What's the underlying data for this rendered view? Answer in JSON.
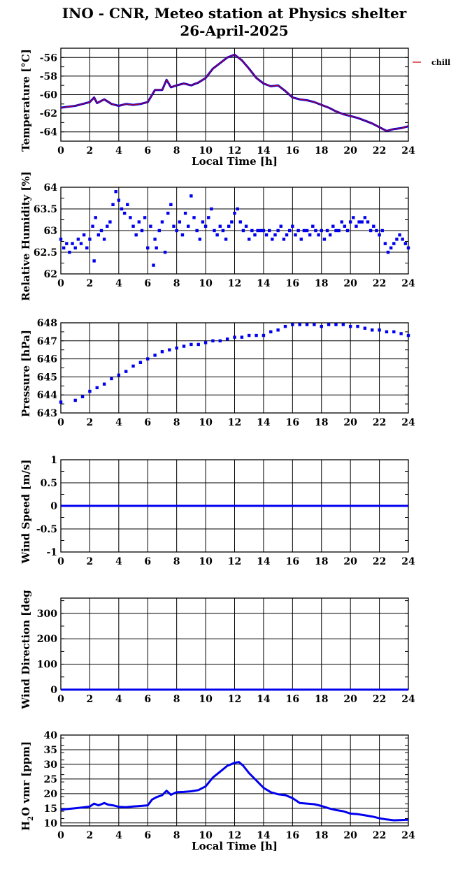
{
  "figure": {
    "title_line1": "INO - CNR, Meteo station at Physics shelter",
    "title_line2": "26-April-2025"
  },
  "chart_data": [
    {
      "type": "line",
      "id": "temperature",
      "ylabel": "Temperature [°C]",
      "xlabel": "Local Time [h]",
      "xlim": [
        0,
        24
      ],
      "ylim": [
        -65,
        -55
      ],
      "x_ticks": [
        0,
        2,
        4,
        6,
        8,
        10,
        12,
        14,
        16,
        18,
        20,
        22,
        24
      ],
      "y_ticks": [
        -64,
        -62,
        -60,
        -58,
        -56
      ],
      "grid": true,
      "legend": {
        "placement": "outside-top-right",
        "entries": [
          {
            "label": "chill",
            "color": "#cc0000"
          }
        ]
      },
      "series": [
        {
          "name": "chill",
          "color": "#0000ee",
          "overlay_color": "#cc0000",
          "x": [
            0,
            0.5,
            1,
            1.5,
            2,
            2.3,
            2.5,
            3,
            3.5,
            4,
            4.5,
            5,
            5.5,
            6,
            6.5,
            7,
            7.3,
            7.6,
            8,
            8.5,
            9,
            9.5,
            10,
            10.5,
            11,
            11.5,
            12,
            12.5,
            13,
            13.5,
            14,
            14.5,
            15,
            15.5,
            16,
            16.5,
            17,
            17.5,
            18,
            18.5,
            19,
            19.5,
            20,
            20.5,
            21,
            21.5,
            22,
            22.5,
            23,
            23.5,
            24
          ],
          "y": [
            -61.4,
            -61.3,
            -61.2,
            -61.0,
            -60.8,
            -60.3,
            -60.9,
            -60.5,
            -61.0,
            -61.2,
            -61.0,
            -61.1,
            -61.0,
            -60.8,
            -59.5,
            -59.5,
            -58.4,
            -59.2,
            -59.0,
            -58.8,
            -59.0,
            -58.7,
            -58.2,
            -57.2,
            -56.6,
            -56.0,
            -55.7,
            -56.3,
            -57.2,
            -58.2,
            -58.8,
            -59.1,
            -59.0,
            -59.6,
            -60.3,
            -60.5,
            -60.6,
            -60.8,
            -61.1,
            -61.4,
            -61.8,
            -62.1,
            -62.3,
            -62.5,
            -62.8,
            -63.1,
            -63.5,
            -63.9,
            -63.7,
            -63.6,
            -63.4
          ]
        }
      ]
    },
    {
      "type": "scatter",
      "id": "humidity",
      "ylabel": "Relative Humidity [%]",
      "xlim": [
        0,
        24
      ],
      "ylim": [
        62,
        64
      ],
      "x_ticks": [
        0,
        2,
        4,
        6,
        8,
        10,
        12,
        14,
        16,
        18,
        20,
        22,
        24
      ],
      "y_ticks": [
        62,
        62.5,
        63,
        63.5,
        64
      ],
      "grid": true,
      "series": [
        {
          "color": "#0000ee",
          "x": [
            0,
            0.2,
            0.4,
            0.6,
            0.8,
            1,
            1.2,
            1.4,
            1.6,
            1.8,
            2,
            2.2,
            2.3,
            2.4,
            2.6,
            2.8,
            3,
            3.2,
            3.4,
            3.6,
            3.8,
            4,
            4.2,
            4.4,
            4.6,
            4.8,
            5,
            5.2,
            5.4,
            5.6,
            5.8,
            6,
            6.2,
            6.4,
            6.5,
            6.6,
            6.8,
            7,
            7.2,
            7.4,
            7.6,
            7.8,
            8,
            8.2,
            8.4,
            8.6,
            8.8,
            9,
            9.2,
            9.4,
            9.6,
            9.8,
            10,
            10.2,
            10.4,
            10.6,
            10.8,
            11,
            11.2,
            11.4,
            11.6,
            11.8,
            12,
            12.2,
            12.4,
            12.6,
            12.8,
            13,
            13.2,
            13.4,
            13.6,
            13.8,
            14,
            14.2,
            14.4,
            14.6,
            14.8,
            15,
            15.2,
            15.4,
            15.6,
            15.8,
            16,
            16.2,
            16.4,
            16.6,
            16.8,
            17,
            17.2,
            17.4,
            17.6,
            17.8,
            18,
            18.2,
            18.4,
            18.6,
            18.8,
            19,
            19.2,
            19.4,
            19.6,
            19.8,
            20,
            20.2,
            20.4,
            20.6,
            20.8,
            21,
            21.2,
            21.4,
            21.6,
            21.8,
            22,
            22.2,
            22.4,
            22.6,
            22.8,
            23,
            23.2,
            23.4,
            23.6,
            23.8,
            24
          ],
          "y": [
            62.8,
            62.6,
            62.7,
            62.5,
            62.7,
            62.6,
            62.8,
            62.7,
            62.9,
            62.6,
            62.8,
            63.1,
            62.3,
            63.3,
            62.9,
            63.0,
            62.8,
            63.1,
            63.2,
            63.6,
            63.9,
            63.7,
            63.5,
            63.4,
            63.6,
            63.3,
            63.1,
            62.9,
            63.2,
            63.0,
            63.3,
            62.6,
            63.1,
            62.2,
            62.8,
            62.6,
            63.0,
            63.2,
            62.5,
            63.4,
            63.6,
            63.1,
            63.0,
            63.2,
            62.9,
            63.4,
            63.1,
            63.8,
            63.3,
            63.0,
            62.8,
            63.2,
            63.1,
            63.3,
            63.5,
            63.0,
            62.9,
            63.1,
            63.0,
            62.8,
            63.1,
            63.2,
            63.4,
            63.5,
            63.2,
            63.0,
            63.1,
            62.8,
            63.0,
            62.9,
            63.0,
            63.0,
            63.0,
            62.9,
            63.0,
            62.8,
            62.9,
            63.0,
            63.1,
            62.8,
            62.9,
            63.0,
            63.1,
            62.9,
            63.0,
            62.8,
            63.0,
            63.0,
            62.9,
            63.1,
            63.0,
            62.9,
            63.0,
            62.8,
            63.0,
            62.9,
            63.1,
            63.0,
            63.0,
            63.2,
            63.1,
            63.0,
            63.2,
            63.3,
            63.1,
            63.2,
            63.2,
            63.3,
            63.2,
            63.0,
            63.1,
            63.0,
            62.9,
            63.0,
            62.7,
            62.5,
            62.6,
            62.7,
            62.8,
            62.9,
            62.8,
            62.7,
            62.6
          ]
        }
      ]
    },
    {
      "type": "scatter",
      "id": "pressure",
      "ylabel": "Pressure [hPa]",
      "xlim": [
        0,
        24
      ],
      "ylim": [
        643,
        648
      ],
      "x_ticks": [
        0,
        2,
        4,
        6,
        8,
        10,
        12,
        14,
        16,
        18,
        20,
        22,
        24
      ],
      "y_ticks": [
        643,
        644,
        645,
        646,
        647,
        648
      ],
      "grid": true,
      "series": [
        {
          "color": "#0000ee",
          "x": [
            0,
            1,
            1.5,
            2,
            2.5,
            3,
            3.5,
            4,
            4.5,
            5,
            5.5,
            6,
            6.5,
            7,
            7.5,
            8,
            8.5,
            9,
            9.5,
            10,
            10.5,
            11,
            11.5,
            12,
            12.5,
            13,
            13.5,
            14,
            14.5,
            15,
            15.5,
            16,
            16.5,
            17,
            17.5,
            18,
            18.5,
            19,
            19.5,
            20,
            20.5,
            21,
            21.5,
            22,
            22.5,
            23,
            23.5,
            24
          ],
          "y": [
            643.6,
            643.7,
            643.9,
            644.2,
            644.4,
            644.6,
            644.9,
            645.1,
            645.3,
            645.6,
            645.8,
            646.0,
            646.2,
            646.4,
            646.5,
            646.6,
            646.7,
            646.8,
            646.8,
            646.9,
            647.0,
            647.0,
            647.1,
            647.2,
            647.2,
            647.3,
            647.3,
            647.3,
            647.5,
            647.6,
            647.8,
            647.9,
            647.9,
            647.9,
            647.9,
            647.8,
            647.9,
            647.9,
            647.9,
            647.8,
            647.8,
            647.7,
            647.6,
            647.6,
            647.5,
            647.5,
            647.4,
            647.3
          ]
        }
      ]
    },
    {
      "type": "line",
      "id": "wind_speed",
      "ylabel": "Wind Speed [m/s]",
      "xlim": [
        0,
        24
      ],
      "ylim": [
        -1,
        1
      ],
      "x_ticks": [
        0,
        2,
        4,
        6,
        8,
        10,
        12,
        14,
        16,
        18,
        20,
        22,
        24
      ],
      "y_ticks": [
        -1,
        -0.5,
        0,
        0.5,
        1
      ],
      "grid": true,
      "series": [
        {
          "color": "#0000ee",
          "x": [
            0,
            24
          ],
          "y": [
            0,
            0
          ]
        }
      ]
    },
    {
      "type": "line",
      "id": "wind_direction",
      "ylabel": "Wind Direction [deg",
      "xlim": [
        0,
        24
      ],
      "ylim": [
        0,
        360
      ],
      "x_ticks": [
        0,
        2,
        4,
        6,
        8,
        10,
        12,
        14,
        16,
        18,
        20,
        22,
        24
      ],
      "y_ticks": [
        0,
        100,
        200,
        300
      ],
      "grid": true,
      "series": [
        {
          "color": "#0000ee",
          "x": [
            0,
            24
          ],
          "y": [
            0,
            0
          ]
        }
      ]
    },
    {
      "type": "line",
      "id": "h2o_vmr",
      "ylabel_parts": [
        "H",
        "2",
        "O vmr [ppm]"
      ],
      "xlabel": "Local Time [h]",
      "xlim": [
        0,
        24
      ],
      "ylim": [
        9,
        40
      ],
      "x_ticks": [
        0,
        2,
        4,
        6,
        8,
        10,
        12,
        14,
        16,
        18,
        20,
        22,
        24
      ],
      "y_ticks": [
        10,
        15,
        20,
        25,
        30,
        35,
        40
      ],
      "grid": true,
      "series": [
        {
          "color": "#0000ee",
          "x": [
            0,
            0.5,
            1,
            1.5,
            2,
            2.3,
            2.6,
            3,
            3.3,
            3.6,
            4,
            4.5,
            5,
            5.5,
            6,
            6.3,
            6.6,
            7,
            7.3,
            7.6,
            8,
            8.5,
            9,
            9.5,
            10,
            10.5,
            11,
            11.5,
            12,
            12.3,
            12.6,
            13,
            13.5,
            14,
            14.5,
            15,
            15.5,
            16,
            16.5,
            17,
            17.5,
            18,
            18.5,
            19,
            19.5,
            20,
            20.5,
            21,
            21.5,
            22,
            22.5,
            23,
            23.5,
            24
          ],
          "y": [
            14.5,
            14.8,
            15.0,
            15.3,
            15.6,
            16.6,
            16.0,
            16.8,
            16.2,
            16.0,
            15.5,
            15.4,
            15.6,
            15.8,
            16.0,
            18.0,
            18.8,
            19.5,
            21.0,
            19.6,
            20.5,
            20.6,
            20.8,
            21.2,
            22.5,
            25.5,
            27.5,
            29.5,
            30.5,
            30.8,
            29.5,
            27.0,
            24.5,
            22.0,
            20.5,
            19.8,
            19.5,
            18.5,
            16.8,
            16.6,
            16.4,
            15.8,
            15.0,
            14.4,
            14.0,
            13.2,
            13.0,
            12.6,
            12.2,
            11.6,
            11.2,
            10.9,
            11.0,
            11.1
          ]
        }
      ]
    }
  ]
}
